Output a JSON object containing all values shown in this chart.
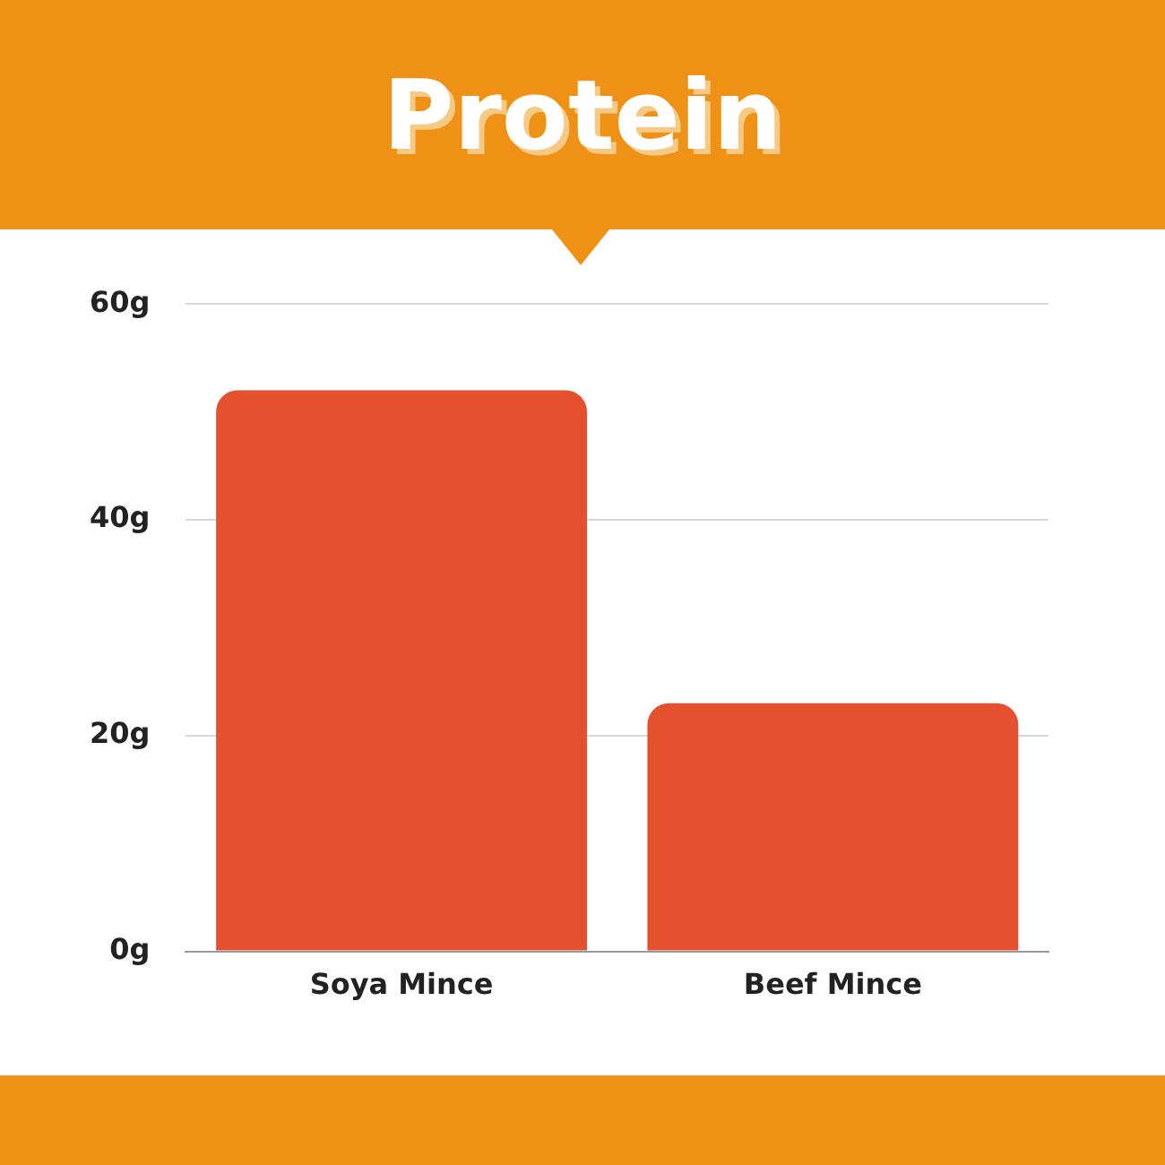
{
  "chart_data": {
    "type": "bar",
    "title": "Protein",
    "categories": [
      "Soya Mince",
      "Beef Mince"
    ],
    "values": [
      52,
      23
    ],
    "color": "#e5512f",
    "ylim": [
      0,
      60
    ],
    "yticks": [
      {
        "value": 0,
        "label": "0g"
      },
      {
        "value": 20,
        "label": "20g"
      },
      {
        "value": 40,
        "label": "40g"
      },
      {
        "value": 60,
        "label": "60g"
      }
    ],
    "grid": "y"
  }
}
